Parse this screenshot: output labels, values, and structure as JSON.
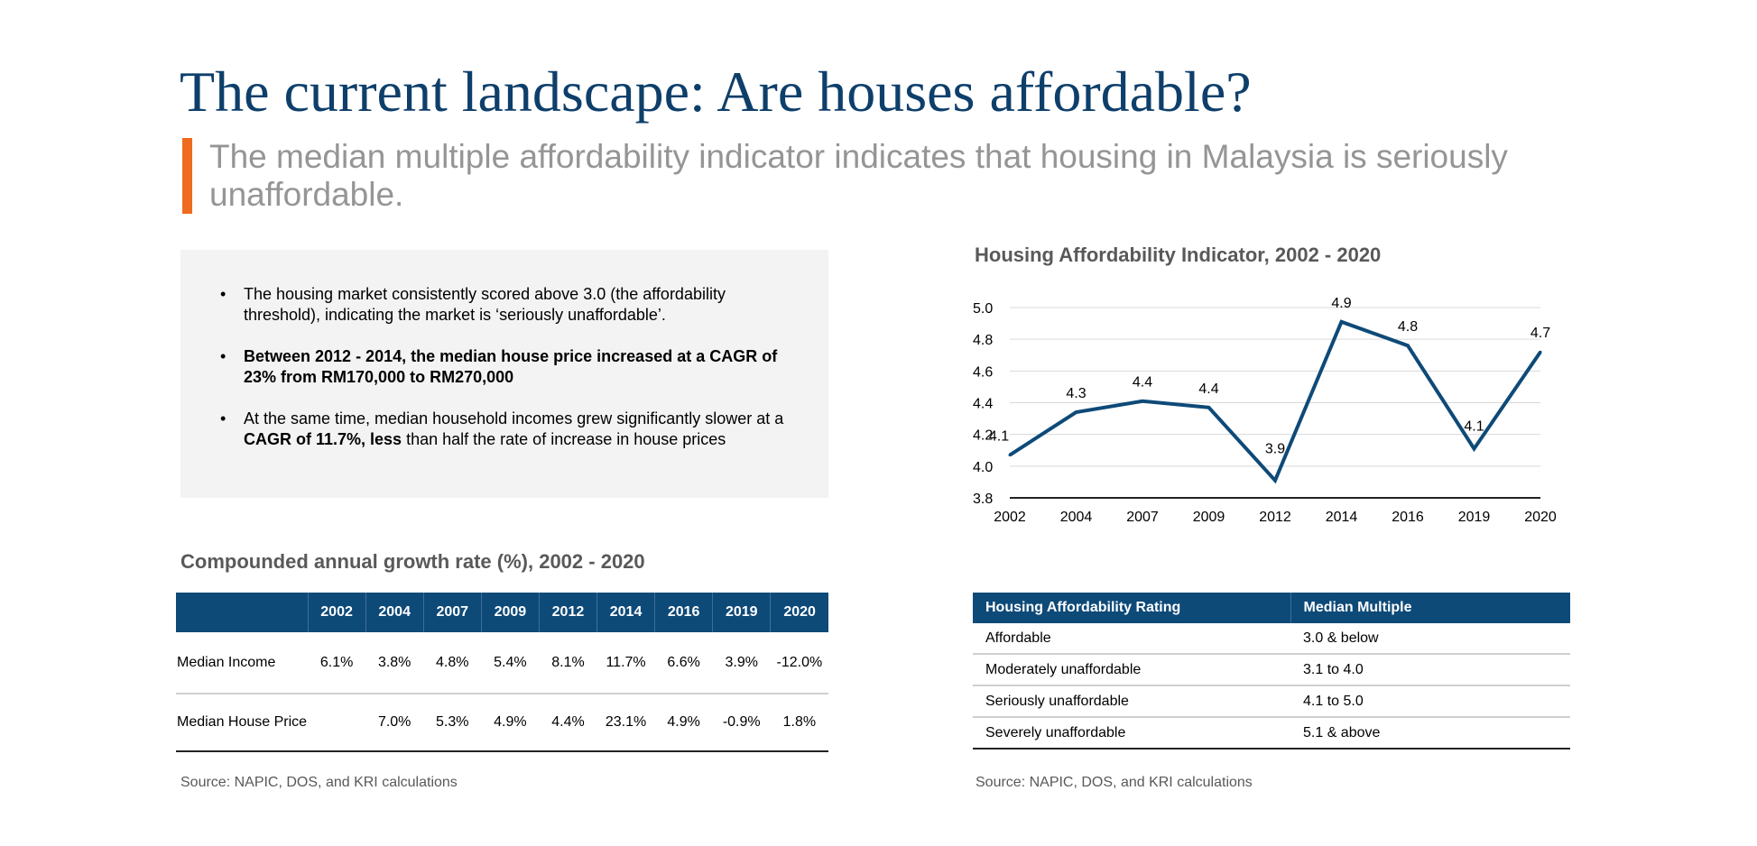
{
  "header": {
    "title": "The current landscape: Are houses affordable?",
    "subtitle": "The median multiple affordability indicator indicates that housing in Malaysia is seriously unaffordable.",
    "accent_color": "#ef6b1f",
    "title_color": "#0e3f6b"
  },
  "summary": {
    "bullet1": "The housing market consistently scored above 3.0 (the affordability threshold), indicating the market is ‘seriously unaffordable’.",
    "bullet2": "Between 2012 - 2014, the median house price increased at a CAGR of 23% from RM170,000 to RM270,000",
    "bullet3_a": "At the same time, median household incomes grew significantly slower at a ",
    "bullet3_b": "CAGR of 11.7%, less",
    "bullet3_c": " than half the rate of increase in house prices"
  },
  "cagr_table": {
    "title": "Compounded annual growth rate (%), 2002 - 2020",
    "header_color": "#0e4a78",
    "years": [
      "2002",
      "2004",
      "2007",
      "2009",
      "2012",
      "2014",
      "2016",
      "2019",
      "2020"
    ],
    "rows": [
      {
        "label": "Median Income",
        "values": [
          "6.1%",
          "3.8%",
          "4.8%",
          "5.4%",
          "8.1%",
          "11.7%",
          "6.6%",
          "3.9%",
          "-12.0%"
        ]
      },
      {
        "label": "Median House Price",
        "values": [
          "",
          "7.0%",
          "5.3%",
          "4.9%",
          "4.4%",
          "23.1%",
          "4.9%",
          "-0.9%",
          "1.8%"
        ]
      }
    ],
    "source": "Source: NAPIC, DOS, and KRI calculations"
  },
  "chart_data": {
    "type": "line",
    "title": "Housing Affordability Indicator, 2002 - 2020",
    "categories": [
      "2002",
      "2004",
      "2007",
      "2009",
      "2012",
      "2014",
      "2016",
      "2019",
      "2020"
    ],
    "series": [
      {
        "values": [
          4.07,
          4.34,
          4.41,
          4.37,
          3.91,
          4.91,
          4.76,
          4.11,
          4.72
        ],
        "labels": [
          "4.1",
          "4.3",
          "4.4",
          "4.4",
          "3.9",
          "4.9",
          "4.8",
          "4.1",
          "4.7"
        ],
        "color": "#0e4a78"
      }
    ],
    "yticks": [
      "3.8",
      "4.0",
      "4.2",
      "4.4",
      "4.6",
      "4.8",
      "5.0"
    ],
    "ylim": [
      3.8,
      5.0
    ],
    "grid": true,
    "xlabel": "",
    "ylabel": ""
  },
  "rating_table": {
    "header_color": "#0e4a78",
    "headers": [
      "Housing Affordability Rating",
      "Median Multiple"
    ],
    "rows": [
      {
        "rating": "Affordable",
        "multiple": "3.0 & below"
      },
      {
        "rating": "Moderately unaffordable",
        "multiple": "3.1 to 4.0"
      },
      {
        "rating": "Seriously unaffordable",
        "multiple": "4.1 to 5.0"
      },
      {
        "rating": "Severely unaffordable",
        "multiple": "5.1 & above"
      }
    ],
    "source": "Source: NAPIC, DOS, and KRI calculations"
  }
}
